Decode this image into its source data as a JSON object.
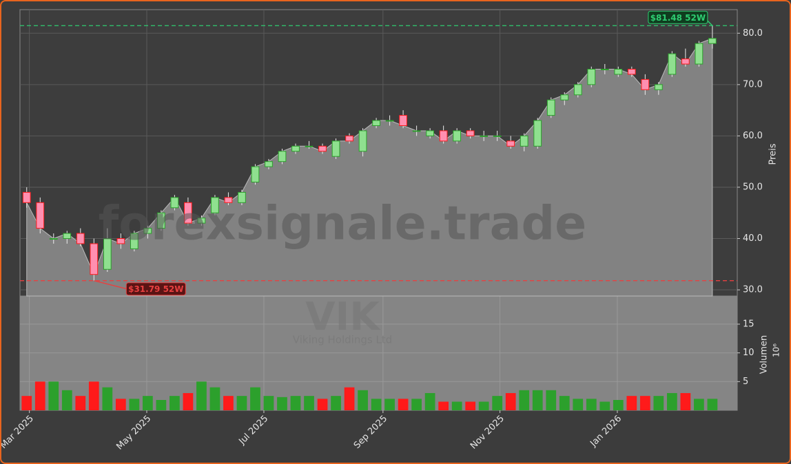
{
  "chart_data": {
    "type": "candlestick",
    "open": [
      49,
      47,
      40,
      40,
      41,
      39,
      34,
      40,
      38,
      41,
      42,
      46,
      47,
      43,
      45,
      48,
      47,
      51,
      54,
      55,
      57,
      58,
      58,
      56,
      60,
      57,
      62,
      63,
      64,
      61,
      60,
      61,
      59,
      61,
      60,
      60,
      59,
      58,
      58,
      64,
      67,
      68,
      70,
      73,
      72,
      73,
      71,
      69,
      72,
      75,
      74,
      78
    ],
    "high": [
      50,
      48,
      41,
      41.5,
      42,
      40,
      42,
      41,
      41.5,
      42.5,
      45.5,
      48.5,
      48,
      44.5,
      48.5,
      49,
      49.5,
      54.5,
      55.5,
      57.5,
      58.5,
      59,
      58.5,
      59.5,
      60.5,
      61.5,
      63.5,
      64,
      65,
      62,
      61.5,
      62,
      61.5,
      61.5,
      61,
      61,
      60,
      60.5,
      63.5,
      67.5,
      68.5,
      70.5,
      73.5,
      74,
      73.5,
      73.5,
      72,
      70.5,
      76.5,
      77,
      78.5,
      81.48
    ],
    "low": [
      46,
      41,
      39,
      39,
      38.5,
      31.79,
      33.5,
      38,
      37.5,
      40,
      41.5,
      45.5,
      42.5,
      42.5,
      44.5,
      46.5,
      46.5,
      50.5,
      53.5,
      54.5,
      56.5,
      57.5,
      56.5,
      55.5,
      58.5,
      56,
      61.5,
      62,
      61.5,
      60,
      59.5,
      58.5,
      58.5,
      59.5,
      59,
      59,
      57.5,
      57,
      57.5,
      63.5,
      66,
      67.5,
      69.5,
      72,
      71.5,
      71.5,
      68,
      68,
      71.5,
      73.5,
      73.5,
      77
    ],
    "close": [
      47,
      42,
      40,
      41,
      39,
      33,
      40,
      39,
      41,
      42,
      45,
      48,
      43,
      44,
      48,
      47,
      49,
      54,
      55,
      57,
      58,
      58,
      57,
      59,
      59,
      61,
      63,
      63,
      62,
      61,
      61,
      59,
      61,
      60,
      60,
      60,
      58,
      60,
      63,
      67,
      68,
      70,
      73,
      73,
      73,
      72,
      69,
      70,
      76,
      74,
      78,
      79
    ],
    "volume": [
      2.5,
      5,
      5,
      3.5,
      2.5,
      5,
      4,
      2,
      2,
      2.5,
      1.8,
      2.5,
      3,
      5,
      4,
      2.5,
      2.5,
      4,
      2.5,
      2.3,
      2.5,
      2.5,
      2,
      2.5,
      4,
      3.5,
      2,
      2,
      2,
      2,
      3,
      1.5,
      1.5,
      1.5,
      1.5,
      2.5,
      3,
      3.5,
      3.5,
      3.5,
      2.5,
      2,
      2,
      1.5,
      1.8,
      2.5,
      2.5,
      2.5,
      3,
      3,
      2,
      2
    ],
    "up_color": "#2ca02c",
    "down_color": "#ff1a1a",
    "xlim": [
      0,
      53.35
    ],
    "xticks": [
      {
        "value": 0.7,
        "label": "Mar 2025"
      },
      {
        "value": 9.43,
        "label": "May 2025"
      },
      {
        "value": 18.14,
        "label": "Jul 2025"
      },
      {
        "value": 27.0,
        "label": "Sep 2025"
      },
      {
        "value": 35.7,
        "label": "Nov 2025"
      },
      {
        "value": 44.43,
        "label": "Jan 2026"
      }
    ],
    "ylim": [
      28.8,
      84.6
    ],
    "yticks": [
      {
        "value": 30,
        "label": "30.0"
      },
      {
        "value": 40,
        "label": "40.0"
      },
      {
        "value": 50,
        "label": "50.0"
      },
      {
        "value": 60,
        "label": "60.0"
      },
      {
        "value": 70,
        "label": "70.0"
      },
      {
        "value": 80,
        "label": "80.0"
      }
    ],
    "volume_ylim": [
      0,
      19.9
    ],
    "volume_yticks": [
      5,
      10,
      15
    ],
    "y_label": "Preis",
    "volume_label": "Volumen",
    "volume_multiplier": "10⁶",
    "watermark": "forexsignale.trade",
    "ticker": "VIK",
    "company": "Viking Holdings Ltd",
    "grid": true,
    "annotations": [
      {
        "label": "$81.48 52W",
        "value": 81.48,
        "color": "#2ecc71"
      },
      {
        "label": "$31.79 52W",
        "value": 31.79,
        "color": "#e84040"
      }
    ]
  }
}
